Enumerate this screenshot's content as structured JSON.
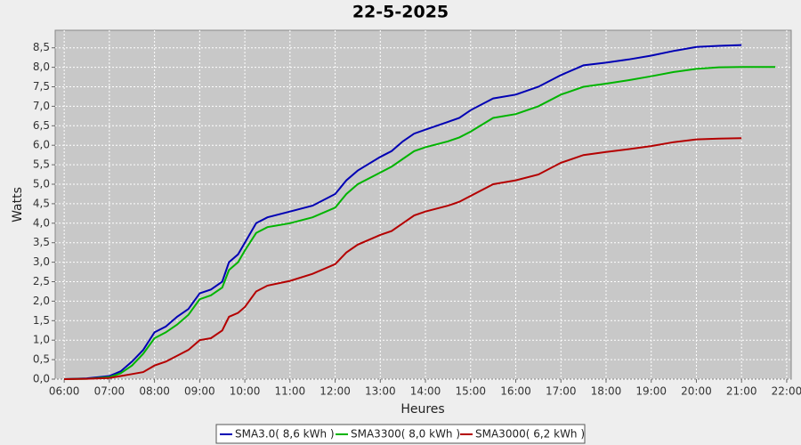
{
  "chart_data": {
    "type": "line",
    "title": "22-5-2025",
    "xlabel": "Heures",
    "ylabel": "Watts",
    "x": [
      6.0,
      6.5,
      7.0,
      7.25,
      7.5,
      7.75,
      8.0,
      8.25,
      8.5,
      8.75,
      9.0,
      9.25,
      9.5,
      9.65,
      9.85,
      10.0,
      10.25,
      10.5,
      11.0,
      11.5,
      12.0,
      12.25,
      12.5,
      13.0,
      13.25,
      13.5,
      13.75,
      14.0,
      14.5,
      14.75,
      15.0,
      15.5,
      16.0,
      16.5,
      17.0,
      17.5,
      18.0,
      18.5,
      19.0,
      19.5,
      20.0,
      20.5,
      21.0,
      21.75
    ],
    "series": [
      {
        "name": "SMA3.0( 8,6 kWh )",
        "color": "#0000b4",
        "values": [
          0,
          0.02,
          0.08,
          0.2,
          0.45,
          0.75,
          1.2,
          1.35,
          1.6,
          1.8,
          2.2,
          2.3,
          2.5,
          3.0,
          3.2,
          3.5,
          4.0,
          4.15,
          4.3,
          4.45,
          4.75,
          5.1,
          5.35,
          5.7,
          5.85,
          6.1,
          6.3,
          6.4,
          6.6,
          6.7,
          6.9,
          7.2,
          7.3,
          7.5,
          7.8,
          8.05,
          8.12,
          8.2,
          8.3,
          8.42,
          8.52,
          8.55,
          8.57,
          null
        ]
      },
      {
        "name": "SMA3300( 8,0 kWh )",
        "color": "#00b400",
        "values": [
          0,
          0.01,
          0.05,
          0.15,
          0.35,
          0.65,
          1.05,
          1.2,
          1.4,
          1.65,
          2.05,
          2.15,
          2.35,
          2.8,
          3.0,
          3.3,
          3.75,
          3.9,
          4.0,
          4.15,
          4.4,
          4.75,
          5.0,
          5.3,
          5.45,
          5.65,
          5.85,
          5.95,
          6.1,
          6.2,
          6.35,
          6.7,
          6.8,
          7.0,
          7.3,
          7.5,
          7.58,
          7.67,
          7.77,
          7.88,
          7.96,
          8.0,
          8.01,
          8.01
        ]
      },
      {
        "name": "SMA3000( 6,2 kWh )",
        "color": "#b40000",
        "values": [
          0,
          0.01,
          0.03,
          0.08,
          0.13,
          0.18,
          0.35,
          0.45,
          0.6,
          0.75,
          1.0,
          1.05,
          1.25,
          1.6,
          1.7,
          1.85,
          2.25,
          2.4,
          2.52,
          2.7,
          2.95,
          3.25,
          3.45,
          3.7,
          3.8,
          4.0,
          4.2,
          4.3,
          4.45,
          4.55,
          4.7,
          5.0,
          5.1,
          5.25,
          5.55,
          5.75,
          5.83,
          5.9,
          5.98,
          6.08,
          6.15,
          6.17,
          6.18,
          null
        ]
      }
    ],
    "xlim": [
      5.8,
      22.1
    ],
    "xticks": [
      {
        "value": 6,
        "label": "06:00"
      },
      {
        "value": 7,
        "label": "07:00"
      },
      {
        "value": 8,
        "label": "08:00"
      },
      {
        "value": 9,
        "label": "09:00"
      },
      {
        "value": 10,
        "label": "10:00"
      },
      {
        "value": 11,
        "label": "11:00"
      },
      {
        "value": 12,
        "label": "12:00"
      },
      {
        "value": 13,
        "label": "13:00"
      },
      {
        "value": 14,
        "label": "14:00"
      },
      {
        "value": 15,
        "label": "15:00"
      },
      {
        "value": 16,
        "label": "16:00"
      },
      {
        "value": 17,
        "label": "17:00"
      },
      {
        "value": 18,
        "label": "18:00"
      },
      {
        "value": 19,
        "label": "19:00"
      },
      {
        "value": 20,
        "label": "20:00"
      },
      {
        "value": 21,
        "label": "21:00"
      },
      {
        "value": 22,
        "label": "22:00"
      }
    ],
    "ylim": [
      0,
      8.95
    ],
    "yticks": [
      {
        "value": 0,
        "label": "0,0"
      },
      {
        "value": 0.5,
        "label": "0,5"
      },
      {
        "value": 1,
        "label": "1,0"
      },
      {
        "value": 1.5,
        "label": "1,5"
      },
      {
        "value": 2,
        "label": "2,0"
      },
      {
        "value": 2.5,
        "label": "2,5"
      },
      {
        "value": 3,
        "label": "3,0"
      },
      {
        "value": 3.5,
        "label": "3,5"
      },
      {
        "value": 4,
        "label": "4,0"
      },
      {
        "value": 4.5,
        "label": "4,5"
      },
      {
        "value": 5,
        "label": "5,0"
      },
      {
        "value": 5.5,
        "label": "5,5"
      },
      {
        "value": 6,
        "label": "6,0"
      },
      {
        "value": 6.5,
        "label": "6,5"
      },
      {
        "value": 7,
        "label": "7,0"
      },
      {
        "value": 7.5,
        "label": "7,5"
      },
      {
        "value": 8,
        "label": "8,0"
      },
      {
        "value": 8.5,
        "label": "8,5"
      }
    ],
    "grid": true
  }
}
